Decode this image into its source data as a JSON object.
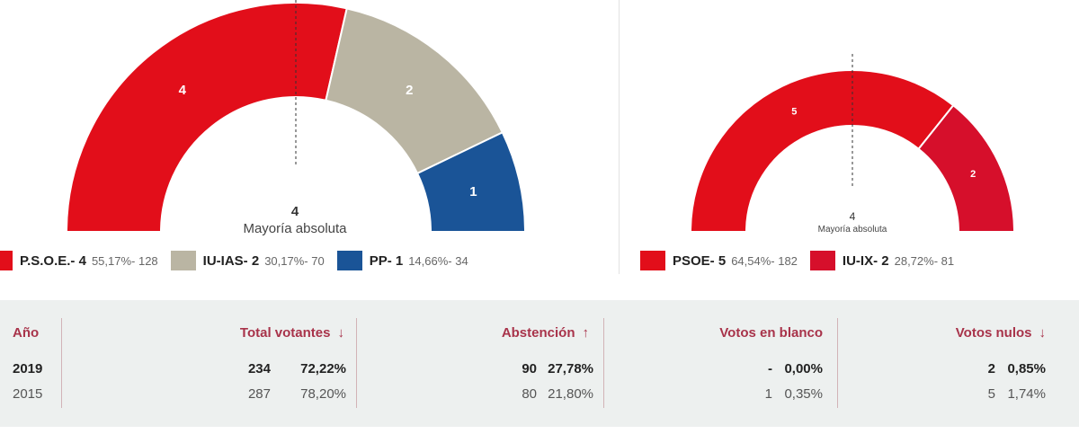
{
  "chart_data": [
    {
      "type": "pie",
      "variant": "semicircle",
      "seats": [
        {
          "label": "4",
          "value": 4,
          "color": "#e20e1a"
        },
        {
          "label": "2",
          "value": 2,
          "color": "#bab5a3"
        },
        {
          "label": "1",
          "value": 1,
          "color": "#1a5497"
        }
      ],
      "center_value": "4",
      "center_label": "Mayoría absoluta",
      "legend": [
        {
          "name": "P.S.O.E.- 4",
          "stat": "55,17%- 128",
          "color": "#e20e1a"
        },
        {
          "name": "IU-IAS- 2",
          "stat": "30,17%- 70",
          "color": "#bab5a3"
        },
        {
          "name": "PP- 1",
          "stat": "14,66%- 34",
          "color": "#1a5497"
        }
      ]
    },
    {
      "type": "pie",
      "variant": "semicircle",
      "seats": [
        {
          "label": "5",
          "value": 5,
          "color": "#e20e1a"
        },
        {
          "label": "2",
          "value": 2,
          "color": "#d60f2b"
        }
      ],
      "center_value": "4",
      "center_label": "Mayoría absoluta",
      "legend": [
        {
          "name": "PSOE- 5",
          "stat": "64,54%- 182",
          "color": "#e20e1a"
        },
        {
          "name": "IU-IX- 2",
          "stat": "28,72%- 81",
          "color": "#d60f2b"
        }
      ]
    }
  ],
  "table": {
    "headers": {
      "year": "Año",
      "voters": "Total votantes",
      "abstention": "Abstención",
      "blank": "Votos en blanco",
      "null": "Votos nulos"
    },
    "arrows": {
      "voters": "↓",
      "abstention": "↑",
      "null": "↓"
    },
    "rows": [
      {
        "year": "2019",
        "voters_n": "234",
        "voters_p": "72,22%",
        "abst_n": "90",
        "abst_p": "27,78%",
        "blank_n": "-",
        "blank_p": "0,00%",
        "null_n": "2",
        "null_p": "0,85%"
      },
      {
        "year": "2015",
        "voters_n": "287",
        "voters_p": "78,20%",
        "abst_n": "80",
        "abst_p": "21,80%",
        "blank_n": "1",
        "blank_p": "0,35%",
        "null_n": "5",
        "null_p": "1,74%"
      }
    ]
  }
}
